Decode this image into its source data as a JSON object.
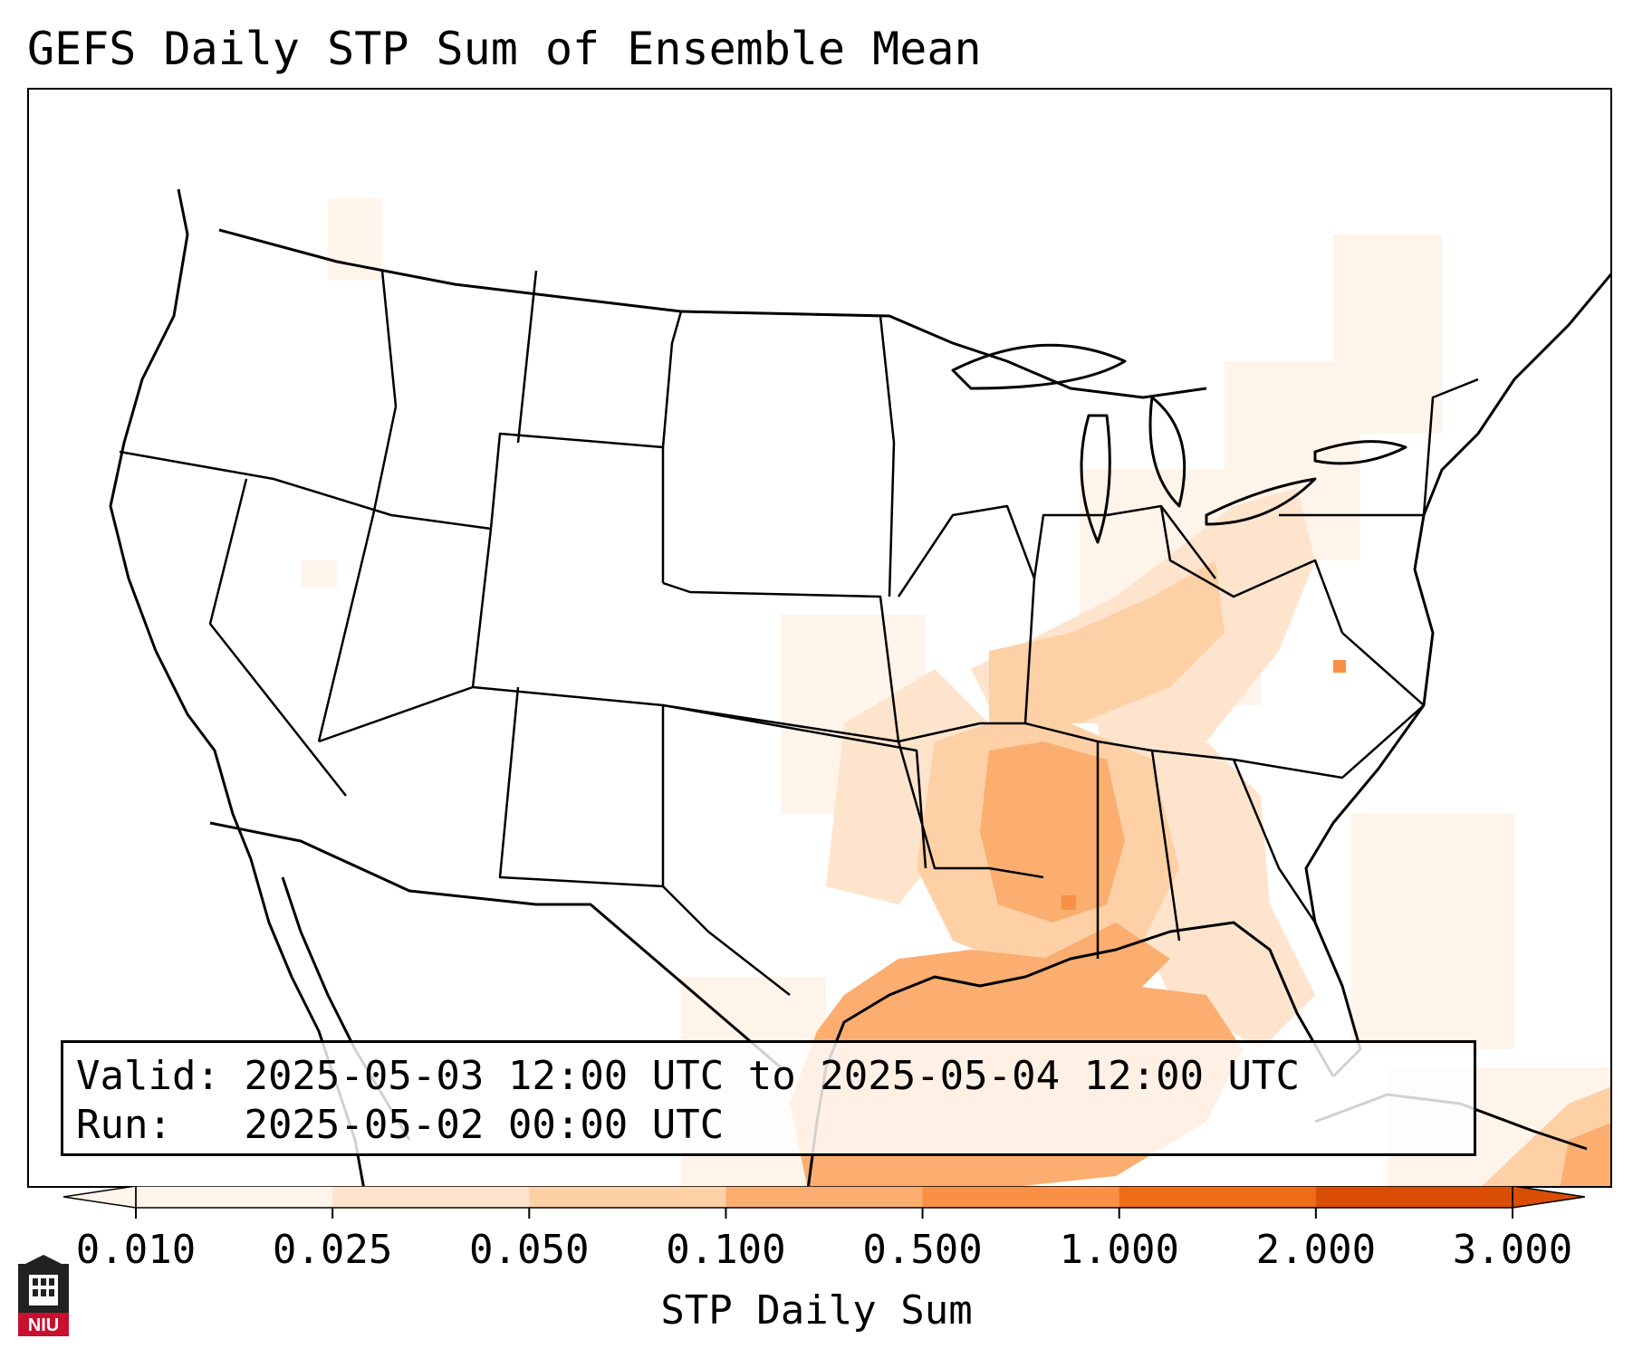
{
  "title": "GEFS Daily STP Sum of Ensemble Mean",
  "info": {
    "valid_label": "Valid:",
    "valid_value": "2025-05-03 12:00 UTC to 2025-05-04 12:00 UTC",
    "run_label": "Run:",
    "run_value": "2025-05-02 00:00 UTC"
  },
  "colorbar": {
    "label": "STP Daily Sum",
    "ticks": [
      "0.010",
      "0.025",
      "0.050",
      "0.100",
      "0.500",
      "1.000",
      "2.000",
      "3.000"
    ],
    "colors": [
      "#fff4ea",
      "#fee4cc",
      "#fdd0a6",
      "#fbae70",
      "#f99044",
      "#f06d18",
      "#d94e04"
    ],
    "extend": "both"
  },
  "logo": {
    "text": "NIU",
    "color": "#c8102e"
  },
  "field_colors": {
    "lightest": "#fff4ea",
    "light": "#fee4cc",
    "medium": "#fdd0a6",
    "strong": "#fbae70",
    "peak": "#f99044"
  }
}
